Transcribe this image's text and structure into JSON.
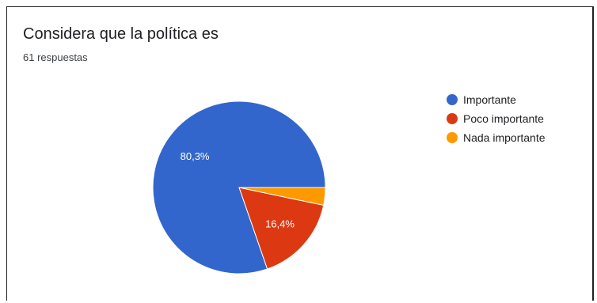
{
  "header": {
    "title": "Considera que la política es",
    "subtitle": "61 respuestas"
  },
  "chart_data": {
    "type": "pie",
    "title": "Considera que la política es",
    "subtitle": "61 respuestas",
    "slices": [
      {
        "label": "Importante",
        "value": 80.3,
        "color": "#3366cc",
        "data_label": "80,3%"
      },
      {
        "label": "Poco importante",
        "value": 16.4,
        "color": "#dc3912",
        "data_label": "16,4%"
      },
      {
        "label": "Nada importante",
        "value": 3.3,
        "color": "#ff9900",
        "data_label": ""
      }
    ],
    "legend_position": "right"
  }
}
